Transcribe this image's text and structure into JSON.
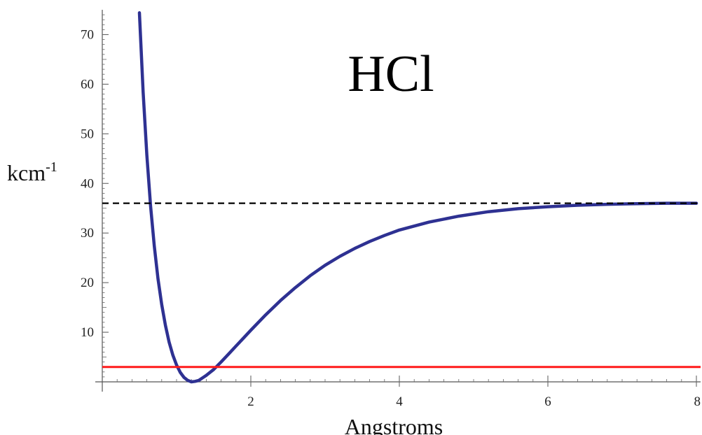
{
  "chart_data": {
    "type": "line",
    "title": "HCl",
    "xlabel": "Angstroms",
    "ylabel": "kcm",
    "ylabel_superscript": "-1",
    "xlim": [
      0,
      8
    ],
    "ylim": [
      0,
      75
    ],
    "x_ticks": [
      2,
      4,
      6,
      8
    ],
    "y_ticks": [
      10,
      20,
      30,
      40,
      50,
      60,
      70
    ],
    "grid": false,
    "legend": "none",
    "series": [
      {
        "kind": "curve",
        "color": "#2e3192",
        "x": [
          0.5,
          0.55,
          0.6,
          0.65,
          0.7,
          0.75,
          0.8,
          0.85,
          0.9,
          0.95,
          1.0,
          1.05,
          1.1,
          1.15,
          1.2,
          1.25,
          1.3,
          1.35,
          1.4,
          1.45,
          1.5,
          1.6,
          1.7,
          1.8,
          1.9,
          2.0,
          2.2,
          2.4,
          2.6,
          2.8,
          3.0,
          3.2,
          3.4,
          3.6,
          3.8,
          4.0,
          4.4,
          4.8,
          5.2,
          5.6,
          6.0,
          6.4,
          6.8,
          7.2,
          7.6,
          8.0
        ],
        "y": [
          74.4,
          58.4,
          45.7,
          35.5,
          27.4,
          20.8,
          15.6,
          11.4,
          8.0,
          5.4,
          3.4,
          1.9,
          0.9,
          0.3,
          0.0,
          0.1,
          0.3,
          0.8,
          1.3,
          1.9,
          2.5,
          4.0,
          5.6,
          7.2,
          8.8,
          10.4,
          13.5,
          16.4,
          19.0,
          21.4,
          23.5,
          25.3,
          26.9,
          28.3,
          29.5,
          30.6,
          32.2,
          33.4,
          34.3,
          34.9,
          35.3,
          35.6,
          35.8,
          35.9,
          36.0,
          36.0
        ]
      },
      {
        "kind": "hline",
        "style": "dashed",
        "color": "#000000",
        "y": 36
      },
      {
        "kind": "hline",
        "style": "solid",
        "color": "#ff1a1a",
        "y": 3
      }
    ]
  }
}
